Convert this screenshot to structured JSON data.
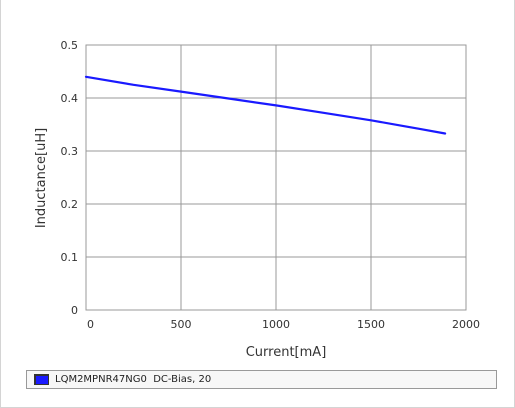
{
  "chart_data": {
    "type": "line",
    "title": "",
    "xlabel": "Current[mA]",
    "ylabel": "Inductance[uH]",
    "xlim": [
      0,
      2000
    ],
    "ylim": [
      0,
      0.5
    ],
    "x_ticks": [
      "0",
      "500",
      "1000",
      "1500",
      "2000"
    ],
    "y_ticks": [
      "0",
      "0.1",
      "0.2",
      "0.3",
      "0.4",
      "0.5"
    ],
    "grid": true,
    "series": [
      {
        "name": "LQM2MPNR47NG0  DC-Bias, 20",
        "color": "#1a1aff",
        "x": [
          0,
          250,
          500,
          750,
          1000,
          1250,
          1500,
          1750,
          1890
        ],
        "y": [
          0.44,
          0.425,
          0.412,
          0.399,
          0.386,
          0.372,
          0.358,
          0.342,
          0.333
        ]
      }
    ],
    "legend_position": "bottom"
  },
  "colors": {
    "grid": "#999999",
    "legend_swatch": "#1a1aff",
    "text": "#333333"
  }
}
